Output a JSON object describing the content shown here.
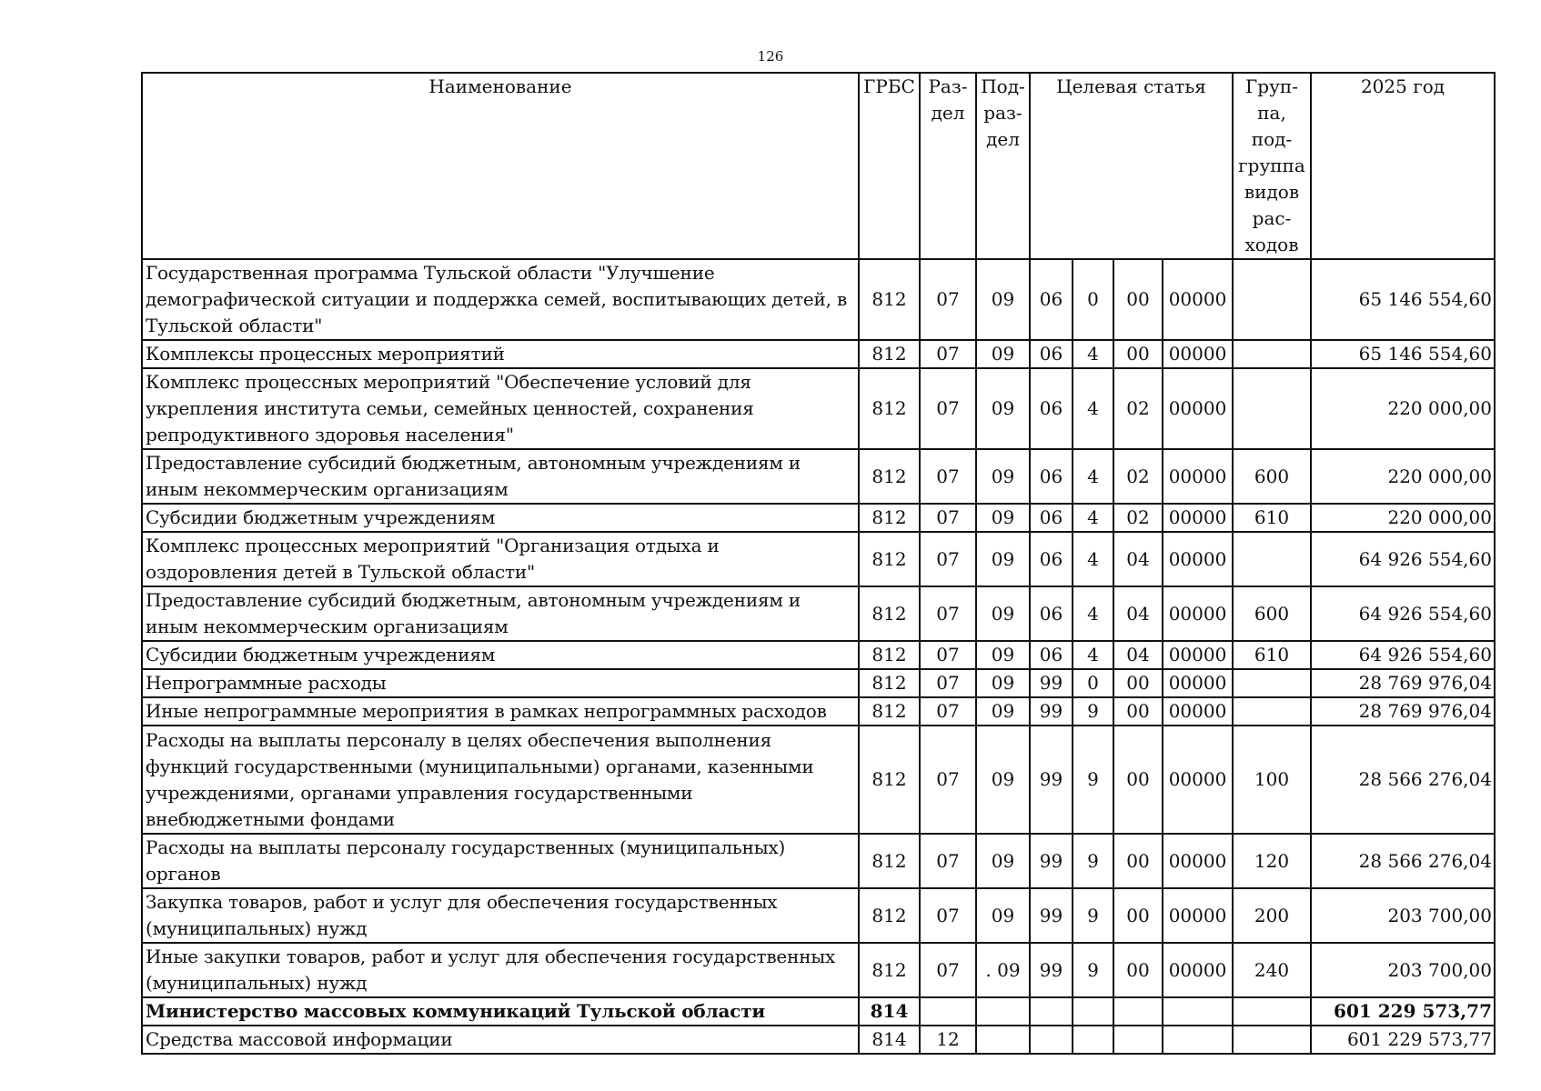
{
  "page_number": "126",
  "headers": {
    "name": "Наименование",
    "grbs": "ГРБС",
    "razdel": "Раз-дел",
    "podrazdel": "Под-раз-дел",
    "target": "Целевая статья",
    "group": "Груп-па, под-группа видов рас-ходов",
    "year": "2025 год"
  },
  "rows": [
    {
      "name": "Государственная программа Тульской области \"Улучшение демографической ситуации и поддержка семей, воспитывающих детей, в Тульской области\"",
      "grbs": "812",
      "rz": "07",
      "pr": "09",
      "c1": "06",
      "c2": "0",
      "c3": "00",
      "c4": "00000",
      "vr": "",
      "sum": "65 146 554,60"
    },
    {
      "name": "Комплексы процессных мероприятий",
      "grbs": "812",
      "rz": "07",
      "pr": "09",
      "c1": "06",
      "c2": "4",
      "c3": "00",
      "c4": "00000",
      "vr": "",
      "sum": "65 146 554,60"
    },
    {
      "name": "Комплекс процессных мероприятий \"Обеспечение условий для укрепления института семьи, семейных ценностей, сохранения репродуктивного здоровья населения\"",
      "grbs": "812",
      "rz": "07",
      "pr": "09",
      "c1": "06",
      "c2": "4",
      "c3": "02",
      "c4": "00000",
      "vr": "",
      "sum": "220 000,00"
    },
    {
      "name": "Предоставление субсидий бюджетным, автономным учреждениям и иным некоммерческим организациям",
      "grbs": "812",
      "rz": "07",
      "pr": "09",
      "c1": "06",
      "c2": "4",
      "c3": "02",
      "c4": "00000",
      "vr": "600",
      "sum": "220 000,00"
    },
    {
      "name": "Субсидии бюджетным учреждениям",
      "grbs": "812",
      "rz": "07",
      "pr": "09",
      "c1": "06",
      "c2": "4",
      "c3": "02",
      "c4": "00000",
      "vr": "610",
      "sum": "220 000,00"
    },
    {
      "name": "Комплекс процессных мероприятий \"Организация отдыха и оздоровления детей в Тульской области\"",
      "grbs": "812",
      "rz": "07",
      "pr": "09",
      "c1": "06",
      "c2": "4",
      "c3": "04",
      "c4": "00000",
      "vr": "",
      "sum": "64 926 554,60"
    },
    {
      "name": "Предоставление субсидий бюджетным, автономным учреждениям и иным некоммерческим организациям",
      "grbs": "812",
      "rz": "07",
      "pr": "09",
      "c1": "06",
      "c2": "4",
      "c3": "04",
      "c4": "00000",
      "vr": "600",
      "sum": "64 926 554,60"
    },
    {
      "name": "Субсидии бюджетным учреждениям",
      "grbs": "812",
      "rz": "07",
      "pr": "09",
      "c1": "06",
      "c2": "4",
      "c3": "04",
      "c4": "00000",
      "vr": "610",
      "sum": "64 926 554,60"
    },
    {
      "name": "Непрограммные расходы",
      "grbs": "812",
      "rz": "07",
      "pr": "09",
      "c1": "99",
      "c2": "0",
      "c3": "00",
      "c4": "00000",
      "vr": "",
      "sum": "28 769 976,04"
    },
    {
      "name": "Иные непрограммные мероприятия в рамках непрограммных расходов",
      "grbs": "812",
      "rz": "07",
      "pr": "09",
      "c1": "99",
      "c2": "9",
      "c3": "00",
      "c4": "00000",
      "vr": "",
      "sum": "28 769 976,04"
    },
    {
      "name": "Расходы на выплаты персоналу в целях обеспечения выполнения функций государственными (муниципальными) органами, казенными учреждениями, органами управления государственными внебюджетными фондами",
      "grbs": "812",
      "rz": "07",
      "pr": "09",
      "c1": "99",
      "c2": "9",
      "c3": "00",
      "c4": "00000",
      "vr": "100",
      "sum": "28 566 276,04"
    },
    {
      "name": "Расходы на выплаты персоналу государственных (муниципальных) органов",
      "grbs": "812",
      "rz": "07",
      "pr": "09",
      "c1": "99",
      "c2": "9",
      "c3": "00",
      "c4": "00000",
      "vr": "120",
      "sum": "28 566 276,04"
    },
    {
      "name": "Закупка товаров, работ и услуг для обеспечения государственных (муниципальных) нужд",
      "grbs": "812",
      "rz": "07",
      "pr": "09",
      "c1": "99",
      "c2": "9",
      "c3": "00",
      "c4": "00000",
      "vr": "200",
      "sum": "203 700,00"
    },
    {
      "name": "Иные закупки товаров, работ и услуг для обеспечения государственных (муниципальных) нужд",
      "grbs": "812",
      "rz": "07",
      "pr": ". 09",
      "c1": "99",
      "c2": "9",
      "c3": "00",
      "c4": "00000",
      "vr": "240",
      "sum": "203 700,00"
    },
    {
      "name": "Министерство массовых коммуникаций Тульской области",
      "grbs": "814",
      "rz": "",
      "pr": "",
      "c1": "",
      "c2": "",
      "c3": "",
      "c4": "",
      "vr": "",
      "sum": "601 229 573,77",
      "bold": true
    },
    {
      "name": "Средства массовой информации",
      "grbs": "814",
      "rz": "12",
      "pr": "",
      "c1": "",
      "c2": "",
      "c3": "",
      "c4": "",
      "vr": "",
      "sum": "601 229 573,77"
    }
  ]
}
